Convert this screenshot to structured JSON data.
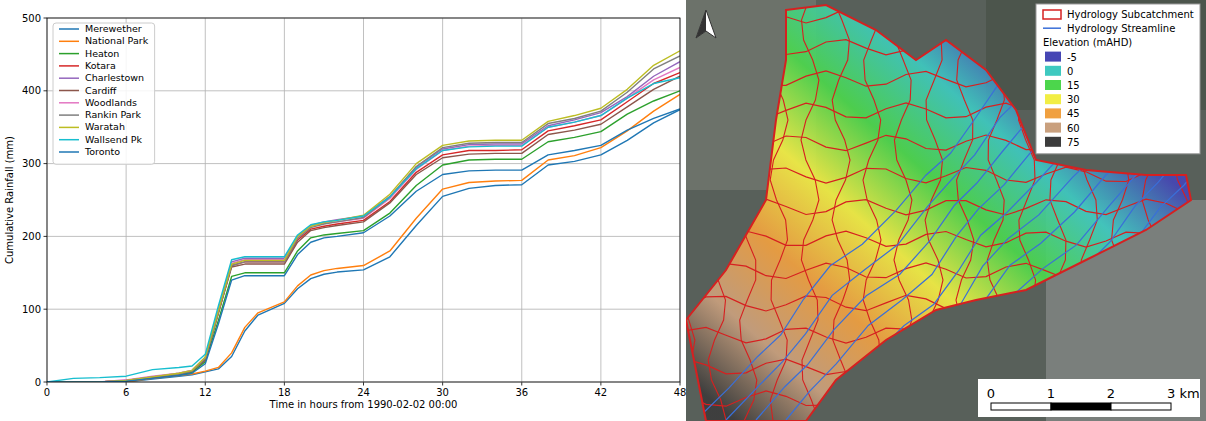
{
  "chart_data": {
    "type": "line",
    "x_label": "Time in hours from 1990-02-02 00:00",
    "y_label": "Cumulative Rainfall (mm)",
    "xlim": [
      0,
      48
    ],
    "xticks": [
      0,
      6,
      12,
      18,
      24,
      30,
      36,
      42,
      48
    ],
    "ylim": [
      0,
      500
    ],
    "yticks": [
      0,
      100,
      200,
      300,
      400,
      500
    ],
    "grid": true,
    "legend": "upper left",
    "x": [
      0,
      2,
      4,
      6,
      8,
      10,
      11,
      12,
      13,
      14,
      15,
      16,
      18,
      19,
      20,
      21,
      22,
      24,
      26,
      28,
      30,
      32,
      34,
      36,
      38,
      40,
      42,
      44,
      46,
      48
    ],
    "series": [
      {
        "name": "Merewether",
        "color": "#1f77b4",
        "values": [
          0,
          0,
          0,
          0,
          4,
          8,
          10,
          14,
          18,
          35,
          70,
          92,
          108,
          128,
          142,
          148,
          151,
          154,
          172,
          215,
          255,
          266,
          270,
          271,
          298,
          303,
          312,
          332,
          356,
          374
        ]
      },
      {
        "name": "National Park",
        "color": "#ff7f0e",
        "values": [
          0,
          0,
          0,
          0,
          5,
          9,
          11,
          15,
          20,
          40,
          75,
          95,
          110,
          132,
          147,
          153,
          156,
          160,
          180,
          225,
          265,
          274,
          276,
          277,
          305,
          311,
          322,
          345,
          372,
          395
        ]
      },
      {
        "name": "Heaton",
        "color": "#2ca02c",
        "values": [
          0,
          0,
          0,
          2,
          6,
          10,
          13,
          28,
          85,
          145,
          150,
          150,
          150,
          180,
          198,
          202,
          204,
          208,
          232,
          270,
          298,
          305,
          306,
          306,
          330,
          336,
          344,
          368,
          386,
          400
        ]
      },
      {
        "name": "Kotara",
        "color": "#d62728",
        "values": [
          0,
          0,
          0,
          2,
          6,
          11,
          15,
          32,
          95,
          160,
          165,
          165,
          165,
          195,
          210,
          214,
          217,
          222,
          248,
          288,
          312,
          318,
          318,
          319,
          345,
          352,
          360,
          385,
          410,
          425
        ]
      },
      {
        "name": "Charlestown",
        "color": "#9467bd",
        "values": [
          0,
          0,
          0,
          2,
          7,
          12,
          16,
          34,
          100,
          165,
          170,
          170,
          170,
          200,
          215,
          220,
          223,
          228,
          255,
          295,
          320,
          326,
          327,
          327,
          352,
          360,
          370,
          392,
          420,
          440
        ]
      },
      {
        "name": "Cardiff",
        "color": "#8c564b",
        "values": [
          0,
          0,
          0,
          2,
          6,
          11,
          15,
          30,
          95,
          158,
          162,
          162,
          162,
          192,
          208,
          212,
          215,
          220,
          246,
          285,
          308,
          313,
          314,
          314,
          340,
          346,
          354,
          378,
          402,
          420
        ]
      },
      {
        "name": "Woodlands",
        "color": "#e377c2",
        "values": [
          0,
          0,
          0,
          3,
          8,
          12,
          16,
          33,
          98,
          163,
          168,
          168,
          168,
          198,
          214,
          218,
          220,
          225,
          252,
          292,
          318,
          324,
          325,
          325,
          350,
          357,
          366,
          390,
          415,
          432
        ]
      },
      {
        "name": "Rankin Park",
        "color": "#7f7f7f",
        "values": [
          0,
          0,
          0,
          2,
          7,
          11,
          15,
          32,
          96,
          160,
          165,
          165,
          165,
          197,
          212,
          217,
          220,
          226,
          254,
          296,
          322,
          328,
          329,
          329,
          355,
          362,
          372,
          398,
          430,
          448
        ]
      },
      {
        "name": "Waratah",
        "color": "#bcbd22",
        "values": [
          0,
          0,
          0,
          2,
          7,
          12,
          16,
          34,
          98,
          162,
          167,
          167,
          167,
          200,
          214,
          219,
          222,
          229,
          258,
          300,
          325,
          331,
          332,
          332,
          358,
          366,
          376,
          402,
          435,
          455
        ]
      },
      {
        "name": "Wallsend Pk",
        "color": "#17becf",
        "values": [
          0,
          5,
          6,
          8,
          17,
          20,
          22,
          38,
          105,
          168,
          172,
          172,
          172,
          202,
          216,
          220,
          222,
          228,
          254,
          293,
          318,
          323,
          324,
          324,
          350,
          357,
          366,
          390,
          410,
          418
        ]
      },
      {
        "name": "Toronto",
        "color": "#1f77b4",
        "values": [
          0,
          0,
          0,
          1,
          5,
          9,
          12,
          25,
          80,
          140,
          146,
          146,
          146,
          175,
          192,
          198,
          200,
          205,
          228,
          262,
          285,
          290,
          291,
          291,
          312,
          318,
          325,
          346,
          362,
          375
        ]
      }
    ]
  },
  "map": {
    "legend": {
      "subcatchment": {
        "label": "Hydrology Subcatchment",
        "color": "#d62020"
      },
      "streamline": {
        "label": "Hydrology Streamline",
        "color": "#3a6fd8"
      },
      "elevation_title": "Elevation (mAHD)",
      "elevation": [
        {
          "value": -5,
          "color": "#4646b4"
        },
        {
          "value": 0,
          "color": "#3ec9c0"
        },
        {
          "value": 15,
          "color": "#4cd64c"
        },
        {
          "value": 30,
          "color": "#f2ee44"
        },
        {
          "value": 45,
          "color": "#f0a040"
        },
        {
          "value": 60,
          "color": "#c9a07e"
        },
        {
          "value": 75,
          "color": "#3c3c3c"
        }
      ]
    },
    "scale_bar": {
      "xlim": [
        0,
        3
      ],
      "ticks": [
        0,
        1,
        2,
        {
          "value": 3,
          "label": "3 km"
        }
      ]
    }
  }
}
